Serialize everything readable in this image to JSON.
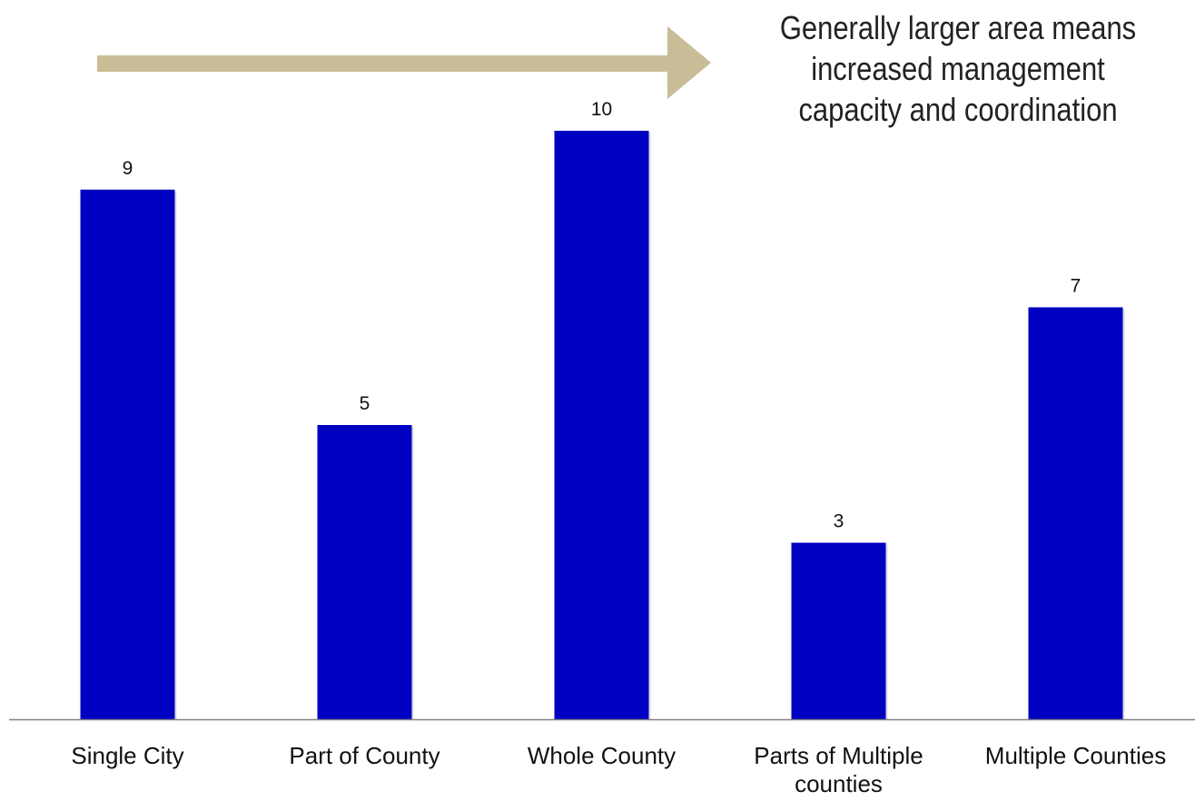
{
  "chart_data": {
    "type": "bar",
    "categories": [
      [
        "Single City"
      ],
      [
        "Part of County"
      ],
      [
        "Whole County"
      ],
      [
        "Parts of Multiple",
        "counties"
      ],
      [
        "Multiple Counties"
      ]
    ],
    "values": [
      9,
      5,
      10,
      3,
      7
    ],
    "data_labels": [
      "9",
      "5",
      "10",
      "3",
      "7"
    ],
    "ylim": [
      0,
      10
    ],
    "grid": false,
    "legend": "none",
    "bar_color": "#0000c0",
    "axis_color": "#808080",
    "annotation": {
      "lines": [
        "Generally larger area means",
        "increased management",
        "capacity and coordination"
      ],
      "arrow_color": "#c8bd96"
    }
  }
}
